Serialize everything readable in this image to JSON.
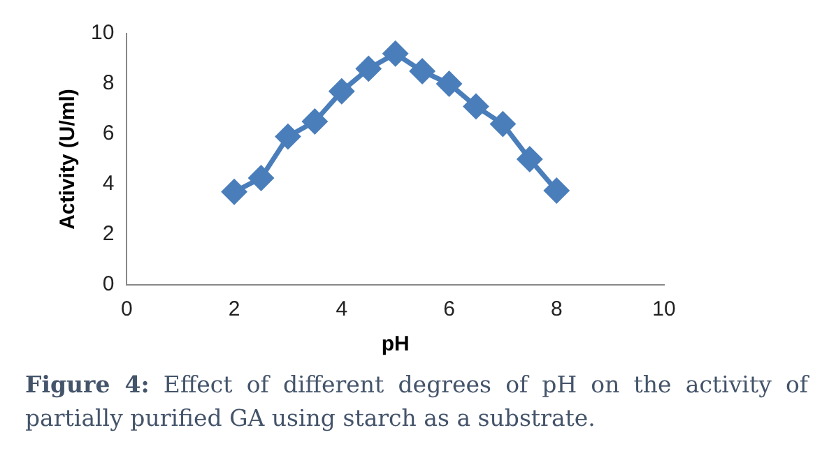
{
  "chart_data": {
    "type": "line",
    "xlabel": "pH",
    "ylabel": "Activity (U/ml)",
    "x": [
      2,
      2.5,
      3,
      3.5,
      4,
      4.5,
      5,
      5.5,
      6,
      6.5,
      7,
      7.5,
      8
    ],
    "series": [
      {
        "color": "#4a7ebb",
        "values": [
          3.7,
          4.25,
          5.9,
          6.5,
          7.7,
          8.6,
          9.2,
          8.5,
          8.0,
          7.1,
          6.4,
          5.0,
          3.75
        ]
      }
    ],
    "xlim": [
      0,
      10
    ],
    "xticks": [
      0,
      2,
      4,
      6,
      8,
      10
    ],
    "ylim": [
      0,
      10
    ],
    "yticks": [
      0,
      2,
      4,
      6,
      8,
      10
    ],
    "grid": false,
    "legend": false,
    "marker": "diamond",
    "line_style": "solid",
    "annotations": [
      "Figure 4: Effect of different degrees of pH on the activity of partially purified GA using starch as a substrate."
    ]
  }
}
